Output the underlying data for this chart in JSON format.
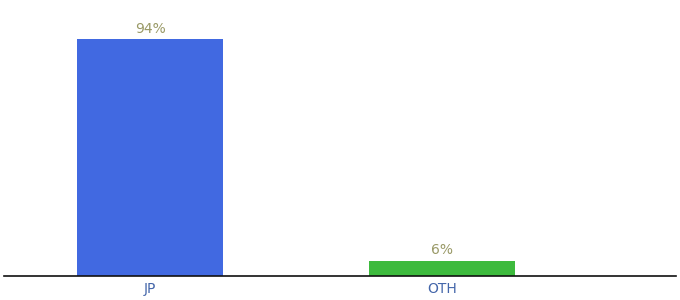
{
  "categories": [
    "JP",
    "OTH"
  ],
  "values": [
    94,
    6
  ],
  "bar_colors": [
    "#4169e1",
    "#3dba3d"
  ],
  "label_texts": [
    "94%",
    "6%"
  ],
  "ylim": [
    0,
    108
  ],
  "background_color": "#ffffff",
  "label_color": "#999966",
  "axis_line_color": "#111111",
  "tick_label_color": "#4466aa",
  "label_fontsize": 10,
  "tick_fontsize": 10,
  "bar_width": 0.5
}
